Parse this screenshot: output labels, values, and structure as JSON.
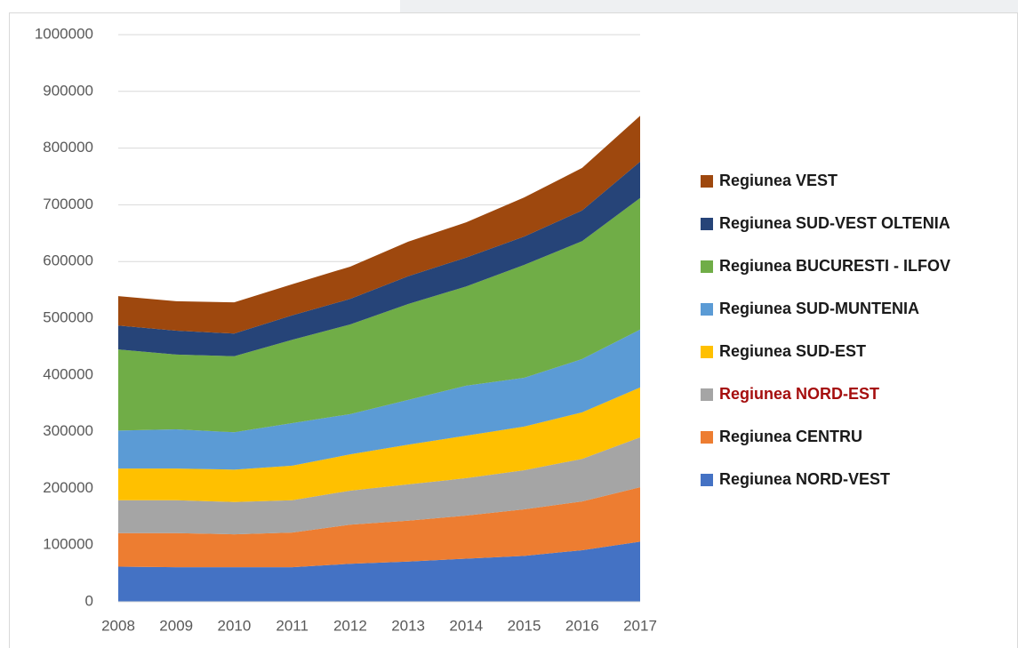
{
  "chart_data": {
    "type": "stacked_area",
    "x": [
      2008,
      2009,
      2010,
      2011,
      2012,
      2013,
      2014,
      2015,
      2016,
      2017
    ],
    "xlim": [
      2008,
      2017
    ],
    "ylim": [
      0,
      1000000
    ],
    "yticks": [
      0,
      100000,
      200000,
      300000,
      400000,
      500000,
      600000,
      700000,
      800000,
      900000,
      1000000
    ],
    "grid": true,
    "legend": "right",
    "series": [
      {
        "name": "Regiunea NORD-VEST",
        "color": "#4472c4",
        "values": [
          62000,
          61000,
          61000,
          61000,
          67000,
          71000,
          76000,
          81000,
          91000,
          106000
        ]
      },
      {
        "name": "Regiunea CENTRU",
        "color": "#ed7d31",
        "values": [
          59000,
          60000,
          58000,
          61000,
          69000,
          72000,
          76000,
          82000,
          86000,
          96000
        ]
      },
      {
        "name": "Regiunea NORD-EST",
        "color": "#a5a5a5",
        "legend_text_color": "#a50e0e",
        "values": [
          58000,
          58000,
          57000,
          57000,
          60000,
          64000,
          66000,
          69000,
          75000,
          88000
        ]
      },
      {
        "name": "Regiunea SUD-EST",
        "color": "#ffc000",
        "values": [
          56000,
          56000,
          57000,
          61000,
          64000,
          70000,
          75000,
          77000,
          82000,
          88000
        ]
      },
      {
        "name": "Regiunea SUD-MUNTENIA",
        "color": "#5b9bd5",
        "values": [
          67000,
          69000,
          66000,
          75000,
          71000,
          79000,
          88000,
          86000,
          94000,
          102000
        ]
      },
      {
        "name": "Regiunea BUCURESTI - ILFOV",
        "color": "#70ad47",
        "values": [
          143000,
          132000,
          134000,
          147000,
          158000,
          169000,
          175000,
          199000,
          208000,
          232000
        ]
      },
      {
        "name": "Regiunea SUD-VEST OLTENIA",
        "color": "#264478",
        "values": [
          42000,
          42000,
          40000,
          43000,
          45000,
          49000,
          51000,
          50000,
          54000,
          64000
        ]
      },
      {
        "name": "Regiunea VEST",
        "color": "#9e480e",
        "values": [
          52000,
          52000,
          55000,
          55000,
          57000,
          61000,
          62000,
          69000,
          75000,
          81000
        ]
      }
    ]
  }
}
